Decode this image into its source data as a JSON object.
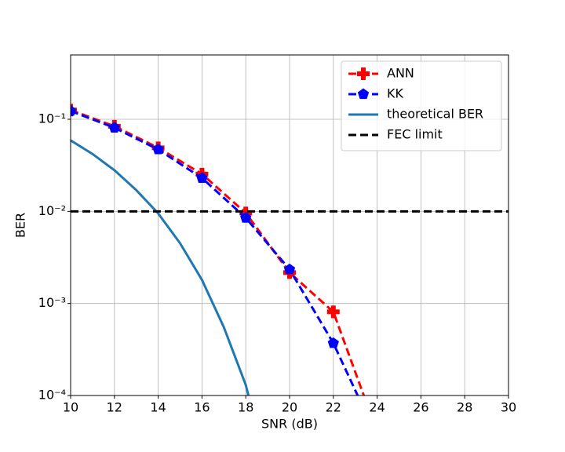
{
  "chart_data": {
    "type": "line",
    "x_label": "SNR (dB)",
    "y_label": "BER",
    "log_y": true,
    "grid": true,
    "legend": "upper right",
    "xlim": [
      10,
      30
    ],
    "xticks": [
      10,
      12,
      14,
      16,
      18,
      20,
      22,
      24,
      26,
      28,
      30
    ],
    "ylim": [
      0.0001,
      0.5
    ],
    "yticks": [
      {
        "value": 0.0001,
        "label": "10⁻⁴"
      },
      {
        "value": 0.001,
        "label": "10⁻³"
      },
      {
        "value": 0.01,
        "label": "10⁻²"
      },
      {
        "value": 0.1,
        "label": "10⁻¹"
      }
    ],
    "series": [
      {
        "name": "ANN",
        "color": "#ff0000",
        "dash": "dashed",
        "marker": "plus",
        "x": [
          10,
          12,
          14,
          16,
          18,
          20,
          22,
          24
        ],
        "values": [
          0.126,
          0.084,
          0.049,
          0.0254,
          0.0096,
          0.00216,
          0.00081,
          4e-05
        ]
      },
      {
        "name": "KK",
        "color": "#0000ff",
        "dash": "dashed",
        "marker": "pentagon",
        "x": [
          10,
          12,
          14,
          16,
          18,
          20,
          22,
          24
        ],
        "values": [
          0.123,
          0.081,
          0.047,
          0.023,
          0.0085,
          0.00234,
          0.00037,
          3.5e-05
        ]
      },
      {
        "name": "theoretical BER",
        "color": "#1f77b4",
        "dash": "solid",
        "x": [
          10,
          11,
          12,
          13,
          14,
          15,
          16,
          17,
          18,
          19
        ],
        "values": [
          0.059,
          0.042,
          0.028,
          0.017,
          0.0095,
          0.0045,
          0.0018,
          0.00055,
          0.00013,
          1.5e-05
        ]
      },
      {
        "name": "FEC limit",
        "color": "#000000",
        "dash": "dashed",
        "x": [
          10,
          30
        ],
        "values": [
          0.01,
          0.01
        ]
      }
    ]
  }
}
